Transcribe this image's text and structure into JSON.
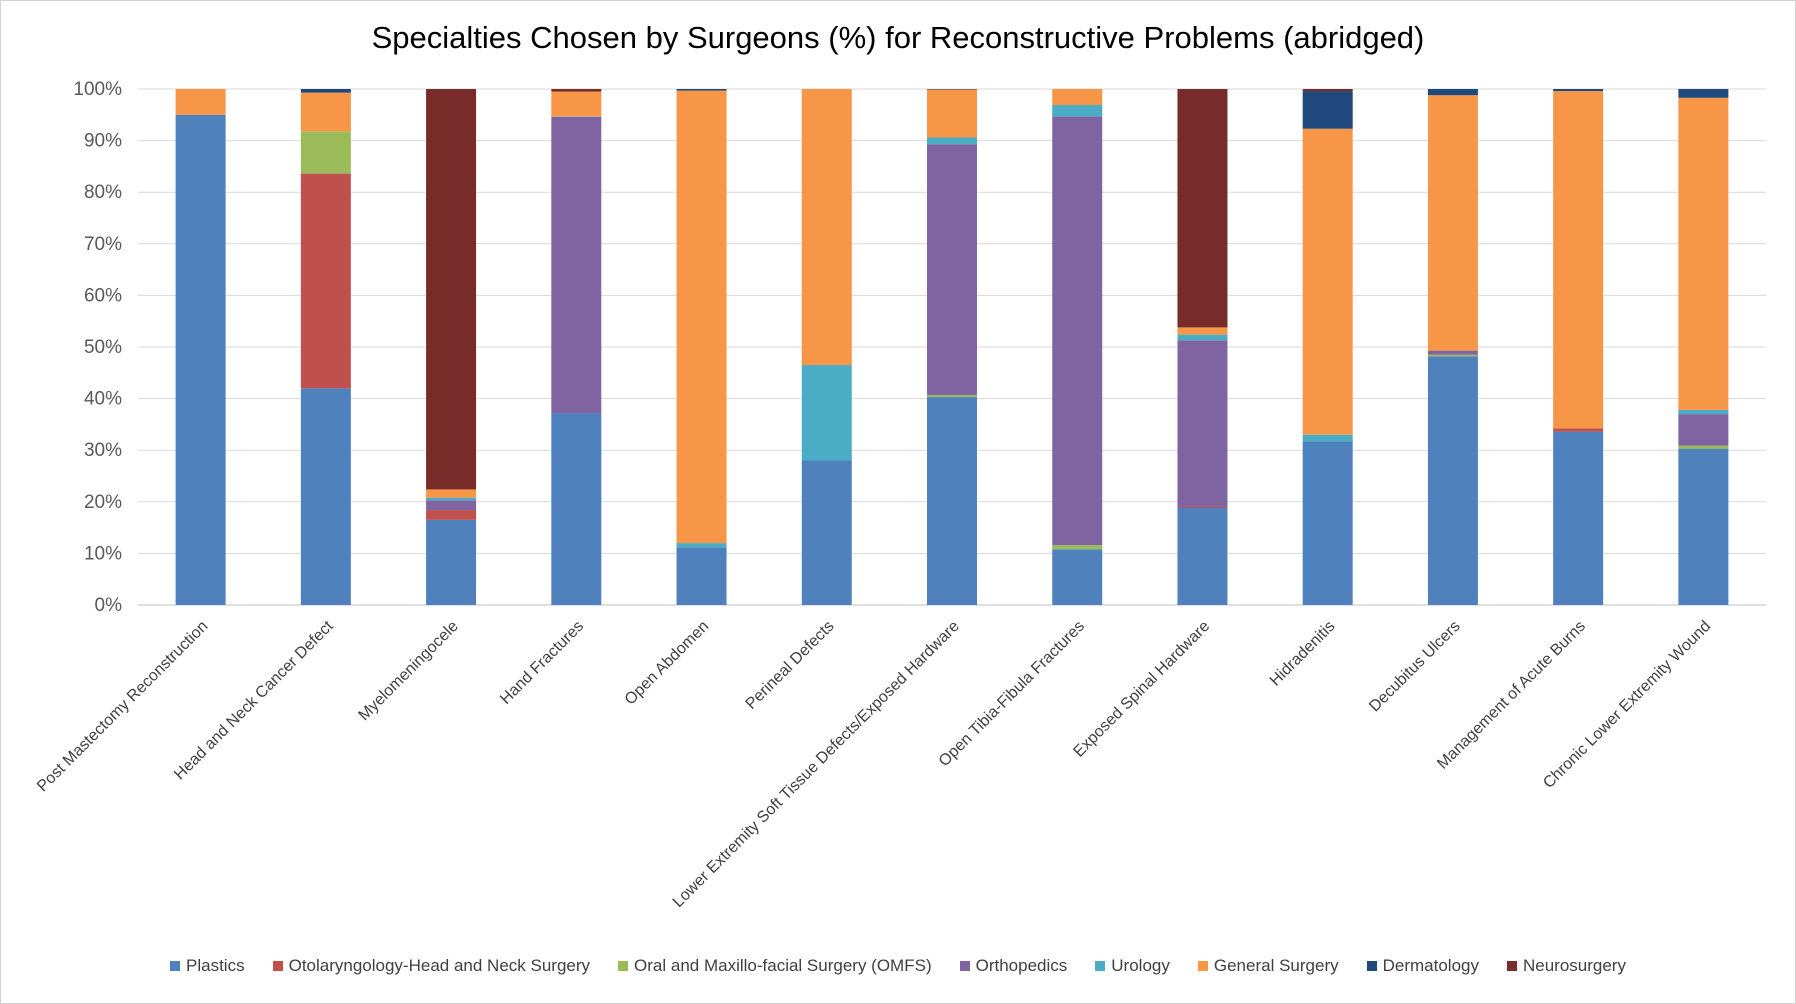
{
  "chart_data": {
    "type": "bar",
    "stacked": true,
    "title": "Specialties Chosen by Surgeons (%) for Reconstructive Problems (abridged)",
    "xlabel": "",
    "ylabel": "",
    "ylim": [
      0,
      100
    ],
    "yticks": [
      "0%",
      "10%",
      "20%",
      "30%",
      "40%",
      "50%",
      "60%",
      "70%",
      "80%",
      "90%",
      "100%"
    ],
    "grid": true,
    "legend_position": "bottom",
    "categories": [
      "Post Mastectomy Reconstruction",
      "Head and Neck Cancer Defect",
      "Myelomeningocele",
      "Hand Fractures",
      "Open Abdomen",
      "Perineal Defects",
      "Lower Extremity Soft Tissue Defects/Exposed Hardware",
      "Open Tibia-Fibula Fractures",
      "Exposed Spinal Hardware",
      "Hidradenitis",
      "Decubitus Ulcers",
      "Management of Acute Burns",
      "Chronic Lower Extremity Wound"
    ],
    "series": [
      {
        "name": "Plastics",
        "color": "#4F81BD",
        "values": [
          95.0,
          42.0,
          16.5,
          37.2,
          11.2,
          28.0,
          40.3,
          10.8,
          18.8,
          31.7,
          48.2,
          33.6,
          30.3
        ]
      },
      {
        "name": "Otolaryngology-Head and Neck Surgery",
        "color": "#C0504D",
        "values": [
          0,
          41.6,
          1.9,
          0,
          0,
          0,
          0,
          0,
          0.2,
          0,
          0,
          0.6,
          0
        ]
      },
      {
        "name": "Oral and Maxillo-facial Surgery (OMFS)",
        "color": "#9BBB59",
        "values": [
          0,
          8.2,
          0,
          0,
          0,
          0,
          0.4,
          0.8,
          0,
          0,
          0.3,
          0,
          0.6
        ]
      },
      {
        "name": "Orthopedics",
        "color": "#8064A2",
        "values": [
          0,
          0,
          1.9,
          57.4,
          0,
          0,
          48.6,
          83.1,
          32.3,
          0,
          0.8,
          0,
          6.1
        ]
      },
      {
        "name": "Urology",
        "color": "#4BACC6",
        "values": [
          0,
          0,
          0.5,
          0.1,
          0.8,
          18.5,
          1.3,
          2.2,
          1.1,
          1.3,
          0,
          0,
          0.8
        ]
      },
      {
        "name": "General Surgery",
        "color": "#F79646",
        "values": [
          5.0,
          7.5,
          1.6,
          4.8,
          87.7,
          53.5,
          9.3,
          3.1,
          1.4,
          59.3,
          49.5,
          65.4,
          60.5
        ]
      },
      {
        "name": "Dermatology",
        "color": "#1F497D",
        "values": [
          0,
          0.7,
          0,
          0,
          0.3,
          0,
          0.1,
          0,
          0,
          7.3,
          1.2,
          0.4,
          1.7
        ]
      },
      {
        "name": "Neurosurgery",
        "color": "#772C2A",
        "values": [
          0,
          0,
          77.6,
          0.5,
          0,
          0,
          0,
          0,
          46.2,
          0.4,
          0,
          0,
          0
        ]
      }
    ]
  }
}
